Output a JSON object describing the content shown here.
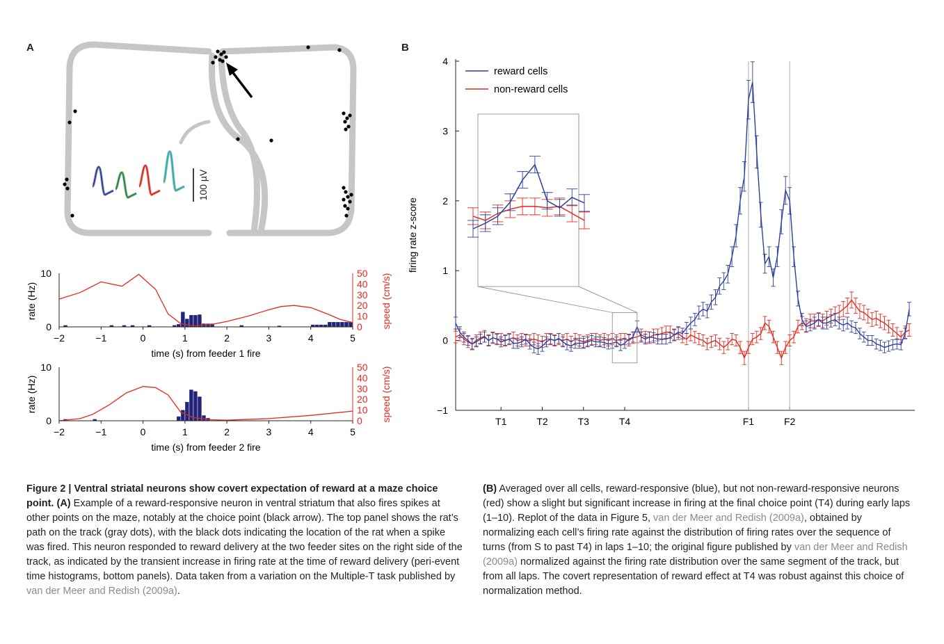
{
  "colors": {
    "reward": "#2f3f9e",
    "non_reward": "#e8271c",
    "path_dots": "#c3c3c3",
    "spike_dots": "#000000",
    "hist_bars": "#23237a",
    "link": "#8a8a8a",
    "waveforms": [
      "#2f3f9e",
      "#1f8a3a",
      "#e8271c",
      "#1fb3b3"
    ]
  },
  "panelA": {
    "label": "A",
    "scalebar_label": "100 µV",
    "peth": [
      {
        "ylabel": "rate (Hz)",
        "y2label": "speed (cm/s)",
        "xlabel": "time (s) from feeder 1 fire",
        "y_ticks": [
          "0",
          "10"
        ],
        "y2_ticks": [
          "0",
          "10",
          "20",
          "30",
          "40",
          "50"
        ],
        "x_ticks": [
          "−2",
          "−1",
          "0",
          "1",
          "2",
          "3",
          "4",
          "5"
        ]
      },
      {
        "ylabel": "rate (Hz)",
        "y2label": "speed (cm/s)",
        "xlabel": "time (s) from feeder 2 fire",
        "y_ticks": [
          "0",
          "10"
        ],
        "y2_ticks": [
          "0",
          "10",
          "20",
          "30",
          "40",
          "50"
        ],
        "x_ticks": [
          "−2",
          "−1",
          "0",
          "1",
          "2",
          "3",
          "4",
          "5"
        ]
      }
    ]
  },
  "panelB": {
    "label": "B"
  },
  "chart_data": [
    {
      "type": "bar",
      "xlabel": "time (s) from feeder 1 fire",
      "ylabel": "rate (Hz)",
      "y2label": "speed (cm/s)",
      "xlim": [
        -2,
        5
      ],
      "ylim": [
        0,
        10
      ],
      "y2lim": [
        0,
        50
      ],
      "series": [
        {
          "name": "rate",
          "x": [
            -1.85,
            -0.75,
            -0.45,
            -0.25,
            0.15,
            0.75,
            0.85,
            0.95,
            1.05,
            1.15,
            1.25,
            1.35,
            1.45,
            1.55,
            1.65,
            2.35,
            3.25,
            4.05,
            4.15,
            4.25,
            4.35,
            4.45,
            4.55,
            4.65,
            4.75,
            4.85,
            4.95
          ],
          "values": [
            0.3,
            0.3,
            0.3,
            0.3,
            0.3,
            0.3,
            0.5,
            2.8,
            1.5,
            2.2,
            2.2,
            2.3,
            0.6,
            0.6,
            0.6,
            0.3,
            0.2,
            0.4,
            0.4,
            0.4,
            0.4,
            0.9,
            0.9,
            0.9,
            0.9,
            0.9,
            0.9
          ]
        },
        {
          "name": "speed",
          "x": [
            -2,
            -1.5,
            -1,
            -0.5,
            -0.1,
            0.3,
            0.6,
            0.9,
            1.2,
            1.6,
            2,
            2.5,
            3,
            3.3,
            3.6,
            4,
            4.4,
            4.7,
            5
          ],
          "values": [
            26,
            32,
            42,
            38,
            49,
            35,
            12,
            3,
            1,
            2,
            5,
            10,
            16,
            19,
            20,
            18,
            12,
            7,
            4
          ]
        }
      ]
    },
    {
      "type": "bar",
      "xlabel": "time (s) from feeder 2 fire",
      "ylabel": "rate (Hz)",
      "y2label": "speed (cm/s)",
      "xlim": [
        -2,
        5
      ],
      "ylim": [
        0,
        10
      ],
      "y2lim": [
        0,
        50
      ],
      "series": [
        {
          "name": "rate",
          "x": [
            -1.85,
            -1.15,
            0.85,
            0.95,
            1.05,
            1.15,
            1.25,
            1.35,
            1.45,
            1.55
          ],
          "values": [
            0.3,
            0.3,
            0.8,
            2.0,
            3.5,
            5.8,
            5.5,
            4.5,
            1.0,
            0.5
          ]
        },
        {
          "name": "speed",
          "x": [
            -2,
            -1.5,
            -1.2,
            -0.8,
            -0.4,
            0,
            0.3,
            0.6,
            0.9,
            1.2,
            1.6,
            2,
            3,
            4,
            5
          ],
          "values": [
            0,
            2,
            6,
            15,
            26,
            32,
            31,
            24,
            8,
            3,
            1,
            0.5,
            2,
            5,
            9
          ]
        }
      ]
    },
    {
      "type": "line",
      "ylabel": "firing rate z-score",
      "ylim": [
        -1,
        4
      ],
      "y_ticks": [
        "−1",
        "0",
        "1",
        "2",
        "3",
        "4"
      ],
      "x_ticks": [
        "T1",
        "T2",
        "T3",
        "T4",
        "F1",
        "F2"
      ],
      "x_tick_positions": [
        11,
        21,
        31,
        41,
        71,
        81
      ],
      "xlim": [
        0,
        111
      ],
      "vlines": [
        71,
        81
      ],
      "legend": "top-left",
      "series": [
        {
          "name": "reward cells",
          "values": [
            0.25,
            0.12,
            0.05,
            0.0,
            -0.05,
            -0.02,
            0.02,
            0.05,
            0.0,
            0.04,
            0.02,
            -0.02,
            0.0,
            0.02,
            -0.04,
            -0.04,
            -0.02,
            0.02,
            -0.05,
            -0.1,
            -0.12,
            -0.08,
            -0.02,
            0.02,
            0.0,
            0.03,
            -0.02,
            -0.06,
            -0.08,
            -0.04,
            -0.04,
            -0.04,
            -0.02,
            0.0,
            -0.02,
            -0.02,
            -0.03,
            -0.05,
            -0.04,
            -0.02,
            -0.07,
            -0.04,
            0.02,
            0.05,
            0.2,
            0.05,
            0.02,
            0.05,
            0.04,
            0.02,
            0.02,
            0.02,
            0.04,
            0.08,
            0.12,
            0.1,
            0.18,
            0.25,
            0.3,
            0.4,
            0.45,
            0.42,
            0.55,
            0.62,
            0.78,
            0.85,
            0.95,
            1.2,
            1.5,
            2.0,
            2.35,
            3.45,
            3.7,
            2.7,
            1.8,
            1.1,
            1.2,
            0.9,
            1.2,
            1.7,
            2.15,
            2.0,
            1.2,
            0.6,
            0.3,
            0.2,
            0.22,
            0.25,
            0.3,
            0.25,
            0.25,
            0.28,
            0.3,
            0.25,
            0.22,
            0.25,
            0.2,
            0.18,
            0.1,
            0.05,
            0.0,
            0.0,
            -0.05,
            -0.07,
            -0.1,
            -0.08,
            -0.06,
            -0.05,
            -0.06,
            0.1,
            0.45
          ],
          "error": 0.07
        },
        {
          "name": "non-reward cells",
          "values": [
            0.05,
            0.08,
            0.02,
            -0.02,
            -0.05,
            0.0,
            0.04,
            0.06,
            0.0,
            0.04,
            0.02,
            0.02,
            0.0,
            0.02,
            0.04,
            0.0,
            0.02,
            0.0,
            0.0,
            0.02,
            0.0,
            -0.02,
            0.02,
            0.02,
            0.0,
            0.02,
            0.0,
            0.02,
            -0.02,
            0.02,
            0.0,
            -0.02,
            0.0,
            0.02,
            0.02,
            0.0,
            0.02,
            0.0,
            0.02,
            0.0,
            0.02,
            0.02,
            0.0,
            0.04,
            0.05,
            0.08,
            0.05,
            0.04,
            0.08,
            0.08,
            0.1,
            0.12,
            0.12,
            0.08,
            0.1,
            0.05,
            0.02,
            0.08,
            0.05,
            0.02,
            0.0,
            -0.05,
            -0.02,
            0.0,
            -0.05,
            -0.1,
            -0.05,
            0.02,
            0.0,
            -0.1,
            -0.25,
            -0.1,
            0.02,
            0.05,
            0.1,
            0.25,
            0.2,
            0.05,
            -0.1,
            -0.25,
            -0.1,
            0.0,
            0.05,
            0.2,
            0.25,
            0.22,
            0.28,
            0.28,
            0.3,
            0.28,
            0.32,
            0.35,
            0.38,
            0.4,
            0.45,
            0.5,
            0.58,
            0.5,
            0.42,
            0.4,
            0.35,
            0.3,
            0.32,
            0.28,
            0.25,
            0.2,
            0.15,
            0.1,
            0.05,
            0.12,
            0.15
          ],
          "error": 0.08
        }
      ],
      "inset": {
        "range": [
          38,
          44
        ],
        "reward_values": [
          1.6,
          1.68,
          1.78,
          1.98,
          2.3,
          2.52,
          2.0,
          1.9,
          2.05,
          1.97
        ],
        "non_reward_values": [
          1.78,
          1.72,
          1.82,
          1.88,
          1.92,
          1.92,
          1.9,
          1.92,
          1.82,
          1.72
        ],
        "error": 0.12
      }
    }
  ],
  "caption": {
    "left": {
      "title": "Figure 2 | Ventral striatal neurons show covert expectation of reward at a maze choice point.",
      "label_A": "(A)",
      "body": " Example of a reward-responsive neuron in ventral striatum that also fires spikes at other points on the maze, notably at the choice point (black arrow). The top panel shows the rat’s path on the track (gray dots), with the black dots indicating the location of the rat when a spike was fired. This neuron responded to reward delivery at the two feeder sites on the right side of the track, as indicated by the transient increase in firing rate at the time of reward delivery (peri-event time histograms, bottom panels). Data taken from a variation on the Multiple-T task published by ",
      "ref": "van der Meer and Redish (2009a)",
      "end": "."
    },
    "right": {
      "label_B": "(B)",
      "body1": " Averaged over all cells, reward-responsive (blue), but not non-reward-responsive neurons (red) show a slight but significant increase in firing at the final choice point (T4) during early laps (1–10). Replot of the data in Figure 5, ",
      "ref1": "van der Meer and Redish (2009a)",
      "body2": ", obtained by normalizing each cell’s firing rate against the distribution of firing rates over the sequence of turns (from S to past T4) in laps 1–10; the original figure published by ",
      "ref2": "van der Meer and Redish (2009a)",
      "body3": " normalized against the firing rate distribution over the same segment of the track, but from all laps. The covert representation of reward effect at T4 was robust against this choice of normalization method."
    }
  }
}
